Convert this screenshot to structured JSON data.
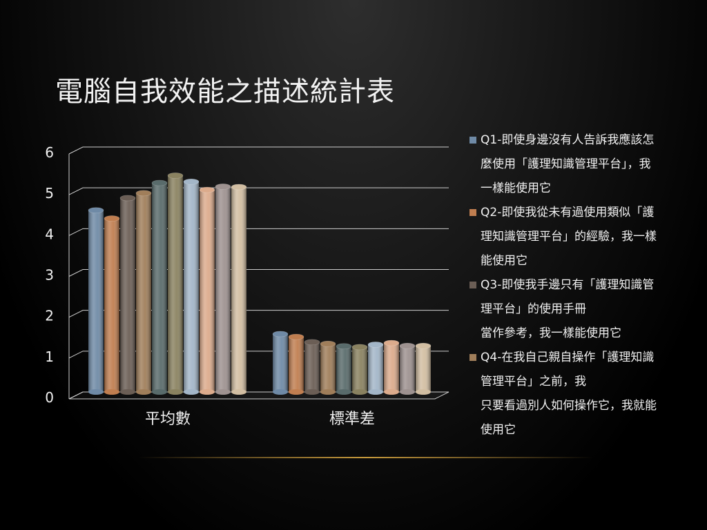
{
  "slide": {
    "title": "電腦自我效能之描述統計表"
  },
  "chart_data": {
    "type": "bar",
    "categories": [
      "平均數",
      "標準差"
    ],
    "ylim": [
      0,
      6
    ],
    "yticks": [
      0,
      1,
      2,
      3,
      4,
      5,
      6
    ],
    "grid": true,
    "legend_position": "right",
    "series": [
      {
        "name": "Q1-即使身邊沒有人告訴我應該怎麼使用「護理知識管理平台」，我一樣能使用它",
        "label": "Q1-即使身邊沒有人告訴我應該怎\n麼使用「護理知識管理平台」，我\n一樣能使用它",
        "color": "#6f8aa6",
        "values": [
          4.45,
          1.42
        ]
      },
      {
        "name": "Q2-即使我從未有過使用類似「護理知識管理平台」的經驗，我一樣能使用它",
        "label": "Q2-即使我從未有過使用類似「護\n理知識管理平台」的經驗，我一樣\n能使用它",
        "color": "#c07e50",
        "values": [
          4.25,
          1.35
        ]
      },
      {
        "name": "Q3-即使我手邊只有「護理知識管理平台」的使用手冊當作參考，我一樣能使用它",
        "label": "Q3-即使我手邊只有「護理知識管\n理平台」的使用手冊\n當作參考，我一樣能使用它",
        "color": "#6b5e55",
        "values": [
          4.75,
          1.22
        ]
      },
      {
        "name": "Q4-在我自己親自操作「護理知識管理平台」之前，我只要看過別人如何操作它，我就能使用它",
        "label": "Q4-在我自己親自操作「護理知識\n管理平台」之前，我\n只要看過別人如何操作它，我就能\n使用它",
        "color": "#a07e5a",
        "values": [
          4.87,
          1.18
        ]
      },
      {
        "name": "",
        "color": "#596b6b",
        "values": [
          5.12,
          1.12
        ]
      },
      {
        "name": "",
        "color": "#8a8260",
        "values": [
          5.3,
          1.1
        ]
      },
      {
        "name": "",
        "color": "#a3b6c8",
        "values": [
          5.15,
          1.16
        ]
      },
      {
        "name": "",
        "color": "#dcab8c",
        "values": [
          4.95,
          1.2
        ]
      },
      {
        "name": "",
        "color": "#9e9290",
        "values": [
          5.03,
          1.13
        ]
      },
      {
        "name": "",
        "color": "#d2bea2",
        "values": [
          5.02,
          1.13
        ]
      }
    ]
  }
}
